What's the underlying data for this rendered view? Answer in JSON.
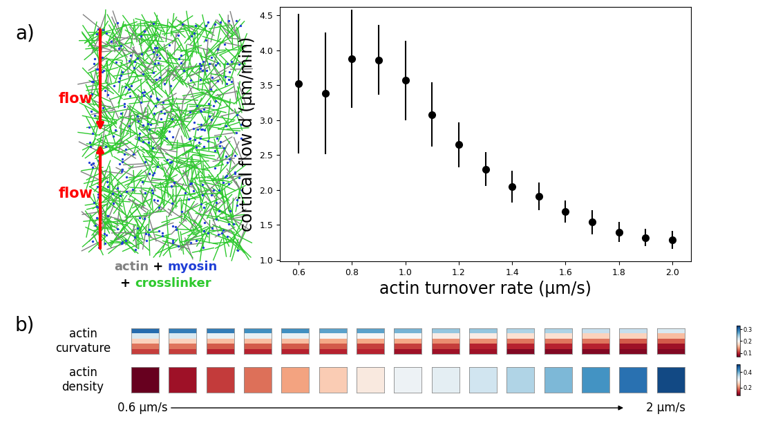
{
  "panel_labels": [
    "a)",
    "b)"
  ],
  "illustration": {
    "flow_labels": [
      "flow",
      "flow"
    ],
    "legend_lines": [
      [
        {
          "text": "actin",
          "color": "#808080"
        },
        {
          "text": " + ",
          "color": "#000000"
        },
        {
          "text": "myosin",
          "color": "#1f3fd6"
        }
      ],
      [
        {
          "text": "+ ",
          "color": "#000000"
        },
        {
          "text": "crosslinker",
          "color": "#2ec92e"
        }
      ]
    ]
  },
  "chart_data": [
    {
      "type": "scatter",
      "xlabel": "actin turnover rate (μm/s)",
      "ylabel": "cortical flow d (μm/min)",
      "x": [
        0.6,
        0.7,
        0.8,
        0.9,
        1.0,
        1.1,
        1.2,
        1.3,
        1.4,
        1.5,
        1.6,
        1.7,
        1.8,
        1.9,
        2.0
      ],
      "values": [
        3.52,
        3.38,
        3.88,
        3.86,
        3.57,
        3.08,
        2.65,
        2.3,
        2.05,
        1.91,
        1.69,
        1.54,
        1.4,
        1.32,
        1.29
      ],
      "errors": [
        1.0,
        0.87,
        0.7,
        0.5,
        0.57,
        0.46,
        0.32,
        0.24,
        0.23,
        0.2,
        0.16,
        0.17,
        0.14,
        0.12,
        0.13
      ],
      "color": "#000000",
      "marker": "o",
      "xlim": [
        0.53,
        2.07
      ],
      "ylim": [
        0.98,
        4.62
      ],
      "xticks": [
        0.6,
        0.8,
        {
          "value": 1.0,
          "label": "1.0"
        },
        1.2,
        1.4,
        1.6,
        1.8,
        {
          "value": 2.0,
          "label": "2.0"
        }
      ],
      "yticks": [
        {
          "value": 1.0,
          "label": "1.0"
        },
        1.5,
        {
          "value": 2.0,
          "label": "2.0"
        },
        2.5,
        {
          "value": 3.0,
          "label": "3.0"
        },
        3.5,
        {
          "value": 4.0,
          "label": "4.0"
        },
        4.5
      ]
    },
    {
      "type": "heatmap",
      "color": "RdBu",
      "x_start_label": "0.6 μm/s",
      "x_end_label": "2 μm/s",
      "rows": [
        {
          "label": "actin\ncurvature",
          "cells": [
            [
              0.3,
              0.22,
              0.17,
              0.13,
              0.11
            ],
            [
              0.29,
              0.22,
              0.17,
              0.13,
              0.11
            ],
            [
              0.29,
              0.21,
              0.16,
              0.12,
              0.1
            ],
            [
              0.28,
              0.21,
              0.16,
              0.12,
              0.1
            ],
            [
              0.28,
              0.21,
              0.16,
              0.12,
              0.1
            ],
            [
              0.27,
              0.2,
              0.15,
              0.12,
              0.1
            ],
            [
              0.27,
              0.2,
              0.15,
              0.11,
              0.1
            ],
            [
              0.26,
              0.2,
              0.15,
              0.11,
              0.09
            ],
            [
              0.25,
              0.19,
              0.14,
              0.11,
              0.09
            ],
            [
              0.25,
              0.19,
              0.14,
              0.1,
              0.09
            ],
            [
              0.24,
              0.18,
              0.13,
              0.1,
              0.08
            ],
            [
              0.24,
              0.18,
              0.13,
              0.1,
              0.08
            ],
            [
              0.23,
              0.17,
              0.13,
              0.1,
              0.08
            ],
            [
              0.23,
              0.17,
              0.12,
              0.09,
              0.08
            ],
            [
              0.22,
              0.16,
              0.12,
              0.09,
              0.08
            ]
          ],
          "color_range": [
            0.07,
            0.33
          ],
          "color_ticks": [
            0.1,
            0.2,
            0.3
          ]
        },
        {
          "label": "actin\ndensity",
          "cells": [
            [
              0.1
            ],
            [
              0.13
            ],
            [
              0.16
            ],
            [
              0.19
            ],
            [
              0.22
            ],
            [
              0.25
            ],
            [
              0.28
            ],
            [
              0.31
            ],
            [
              0.32
            ],
            [
              0.34
            ],
            [
              0.36
            ],
            [
              0.39
            ],
            [
              0.42
            ],
            [
              0.45
            ],
            [
              0.48
            ]
          ],
          "color_range": [
            0.1,
            0.5
          ],
          "color_ticks": [
            0.2,
            0.4
          ]
        }
      ]
    }
  ]
}
